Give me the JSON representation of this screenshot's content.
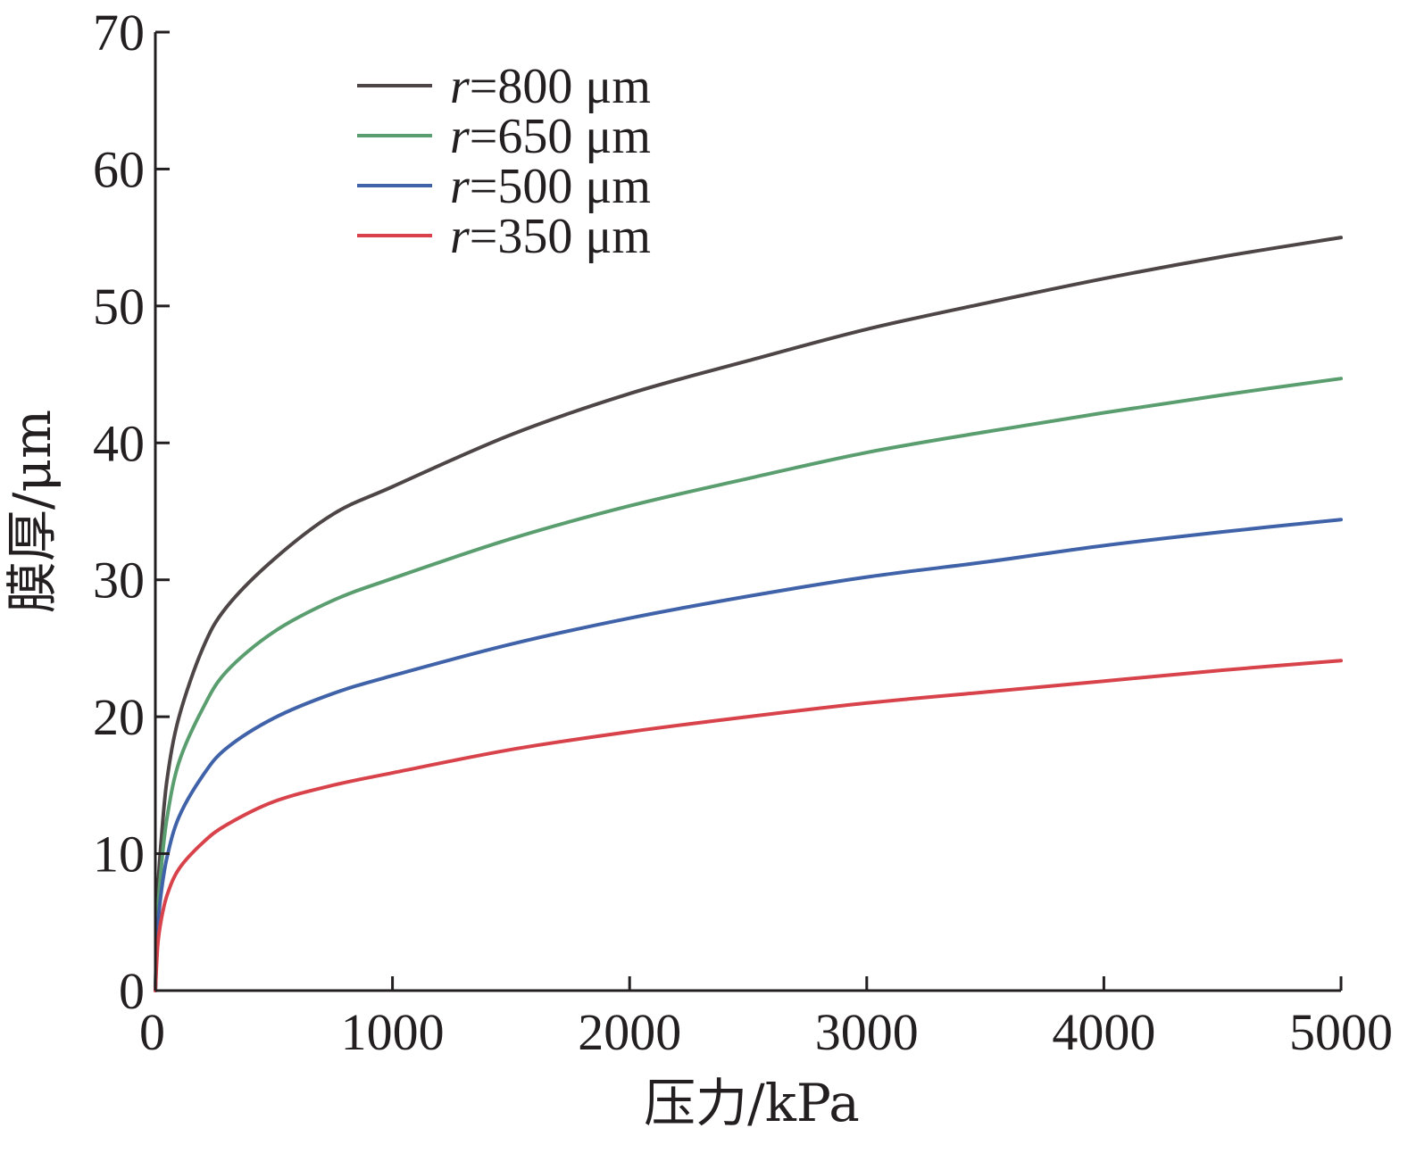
{
  "chart_data": {
    "type": "line",
    "title": "",
    "xlabel": "压力/kPa",
    "ylabel": "膜厚/μm",
    "xlim": [
      0,
      5000
    ],
    "ylim": [
      0,
      70
    ],
    "xticks": [
      "0",
      "1000",
      "2000",
      "3000",
      "4000",
      "5000"
    ],
    "yticks": [
      "0",
      "10",
      "20",
      "30",
      "40",
      "50",
      "60",
      "70"
    ],
    "grid": false,
    "legend_position": "top-left",
    "x": [
      0,
      10,
      25,
      50,
      100,
      200,
      300,
      500,
      750,
      1000,
      1500,
      2000,
      2500,
      3000,
      3500,
      4000,
      4500,
      5000
    ],
    "series": [
      {
        "name": "r=800 μm",
        "legend_var": "r",
        "legend_rest": "=800 μm",
        "color": "#4d4546",
        "values": [
          0,
          7.0,
          11.0,
          15.5,
          20.0,
          25.0,
          28.0,
          31.5,
          34.8,
          36.8,
          40.6,
          43.6,
          46.0,
          48.3,
          50.2,
          52.0,
          53.6,
          55.0
        ]
      },
      {
        "name": "r=650 μm",
        "legend_var": "r",
        "legend_rest": "=650 μm",
        "color": "#5a9e6f",
        "values": [
          0,
          5.5,
          9.0,
          12.7,
          16.7,
          20.6,
          23.3,
          26.2,
          28.5,
          30.1,
          33.0,
          35.4,
          37.4,
          39.3,
          40.8,
          42.2,
          43.5,
          44.7
        ]
      },
      {
        "name": "r=500 μm",
        "legend_var": "r",
        "legend_rest": "=500 μm",
        "color": "#4062a8",
        "values": [
          0,
          4.5,
          7.2,
          9.8,
          12.7,
          15.7,
          17.7,
          19.9,
          21.7,
          23.0,
          25.3,
          27.2,
          28.8,
          30.2,
          31.3,
          32.5,
          33.5,
          34.4
        ]
      },
      {
        "name": "r=350 μm",
        "legend_var": "r",
        "legend_rest": "=350 μm",
        "color": "#d8434b",
        "values": [
          0,
          3.3,
          5.2,
          7.0,
          8.9,
          10.8,
          12.1,
          13.8,
          15.0,
          15.9,
          17.6,
          18.9,
          20.0,
          21.0,
          21.8,
          22.6,
          23.4,
          24.1
        ]
      }
    ]
  }
}
